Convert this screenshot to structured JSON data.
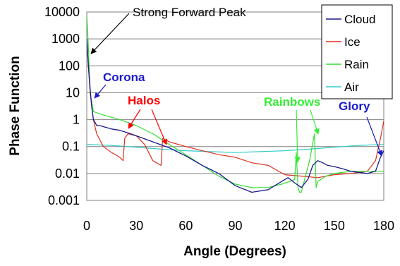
{
  "chart_data": {
    "type": "line",
    "xlabel": "Angle (Degrees)",
    "ylabel": "Phase Function",
    "xlim": [
      0,
      180
    ],
    "ylim": [
      0.001,
      10000
    ],
    "yscale": "log",
    "grid": "horizontal",
    "legend_position": "top-right",
    "x_ticks": [
      "0",
      "30",
      "60",
      "90",
      "120",
      "150",
      "180"
    ],
    "y_ticks": [
      "0.001",
      "0.01",
      "0.1",
      "1",
      "10",
      "100",
      "1000",
      "10000"
    ],
    "series": [
      {
        "name": "Cloud",
        "color": "#1a1a8c",
        "x": [
          0,
          1,
          2,
          3,
          4,
          5,
          6,
          8,
          10,
          15,
          20,
          25,
          30,
          40,
          50,
          60,
          70,
          80,
          90,
          100,
          110,
          118,
          122,
          126,
          130,
          134,
          137,
          140,
          143,
          146,
          150,
          155,
          160,
          165,
          170,
          175,
          178,
          180
        ],
        "y": [
          1000,
          100,
          15,
          3,
          1,
          0.8,
          0.6,
          0.6,
          0.55,
          0.45,
          0.4,
          0.32,
          0.25,
          0.15,
          0.09,
          0.045,
          0.02,
          0.01,
          0.0035,
          0.002,
          0.0025,
          0.005,
          0.007,
          0.0045,
          0.003,
          0.006,
          0.02,
          0.03,
          0.025,
          0.02,
          0.018,
          0.015,
          0.012,
          0.011,
          0.01,
          0.012,
          0.04,
          0.07
        ]
      },
      {
        "name": "Ice",
        "color": "#e03020",
        "x": [
          0,
          1,
          2,
          4,
          6,
          10,
          15,
          20,
          22,
          23,
          25,
          30,
          35,
          40,
          45,
          46,
          50,
          60,
          70,
          80,
          90,
          100,
          110,
          120,
          130,
          140,
          150,
          160,
          170,
          175,
          178,
          180
        ],
        "y": [
          1000,
          100,
          10,
          1,
          0.3,
          0.1,
          0.06,
          0.04,
          0.03,
          0.2,
          0.3,
          0.25,
          0.12,
          0.03,
          0.02,
          0.2,
          0.15,
          0.1,
          0.07,
          0.05,
          0.04,
          0.025,
          0.02,
          0.009,
          0.008,
          0.007,
          0.009,
          0.01,
          0.012,
          0.03,
          0.2,
          0.9
        ]
      },
      {
        "name": "Rain",
        "color": "#33dd33",
        "x": [
          0,
          1,
          2,
          4,
          6,
          10,
          20,
          30,
          40,
          50,
          60,
          70,
          80,
          90,
          100,
          110,
          118,
          123,
          126,
          127,
          128,
          129,
          130,
          135,
          138,
          139,
          140,
          145,
          150,
          160,
          170,
          180
        ],
        "y": [
          8000,
          500,
          10,
          2,
          1.8,
          1.5,
          1,
          0.6,
          0.3,
          0.12,
          0.05,
          0.02,
          0.008,
          0.004,
          0.003,
          0.003,
          0.004,
          0.005,
          0.006,
          0.06,
          0.003,
          0.002,
          0.002,
          0.03,
          0.3,
          0.003,
          0.005,
          0.008,
          0.01,
          0.012,
          0.012,
          0.012
        ]
      },
      {
        "name": "Air",
        "color": "#33cccc",
        "x": [
          0,
          15,
          30,
          45,
          60,
          75,
          90,
          105,
          120,
          135,
          150,
          165,
          180
        ],
        "y": [
          0.12,
          0.11,
          0.095,
          0.08,
          0.07,
          0.065,
          0.06,
          0.065,
          0.07,
          0.08,
          0.095,
          0.11,
          0.12
        ]
      }
    ],
    "annotations": [
      {
        "text": "Strong Forward Peak",
        "color": "#000000",
        "x": 1,
        "y": 1000
      },
      {
        "text": "Corona",
        "color": "#1a1acc",
        "x": 5,
        "y": 10
      },
      {
        "text": "Halos",
        "color": "#ff0000",
        "x": 22,
        "y": 0.3
      },
      {
        "text": "Rainbows",
        "color": "#33ee33",
        "x": 138,
        "y": 0.3
      },
      {
        "text": "Glory",
        "color": "#1a1acc",
        "x": 179,
        "y": 0.07
      }
    ]
  }
}
